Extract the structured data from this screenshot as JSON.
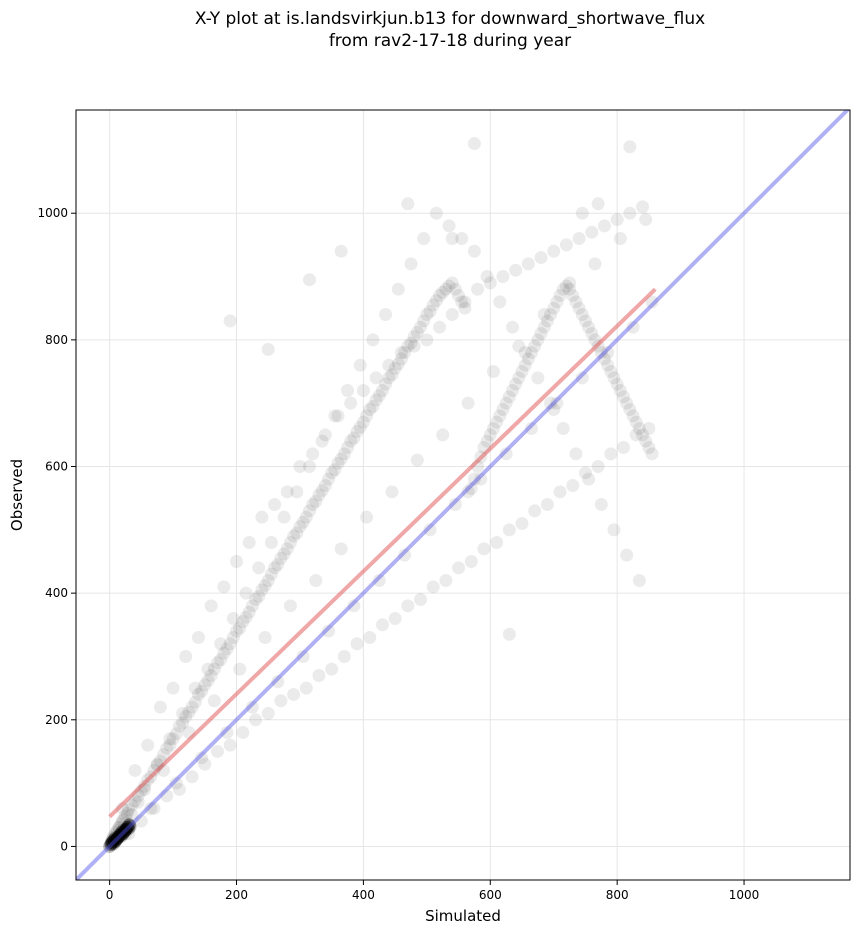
{
  "chart_data": {
    "type": "scatter",
    "title": "X-Y plot at is.landsvirkjun.b13 for downward_shortwave_flux",
    "subtitle": "from rav2-17-18 during year",
    "xlabel": "Simulated",
    "ylabel": "Observed",
    "xlim": [
      -53,
      1167
    ],
    "ylim": [
      -53,
      1163
    ],
    "xticks": [
      0,
      200,
      400,
      600,
      800,
      1000
    ],
    "yticks": [
      0,
      200,
      400,
      600,
      800,
      1000
    ],
    "grid": true,
    "legend": "none",
    "colors": {
      "points": "#000000",
      "fit_line": "#e05050",
      "one_to_one": "#4f4fe6"
    },
    "reference_line": {
      "x": [
        -53,
        1167
      ],
      "y": [
        -53,
        1167
      ]
    },
    "fit_line": {
      "x": [
        0,
        860
      ],
      "y": [
        47,
        880
      ]
    },
    "series": [
      {
        "point_alpha": 0.08,
        "x": [
          2,
          3,
          4,
          5,
          6,
          8,
          10,
          12,
          15,
          18,
          20,
          22,
          25,
          28,
          30,
          35,
          40,
          45,
          50,
          55,
          60,
          65,
          70,
          75,
          80,
          85,
          90,
          95,
          100,
          105,
          110,
          115,
          120,
          125,
          130,
          135,
          140,
          145,
          150,
          155,
          160,
          165,
          170,
          175,
          180,
          185,
          190,
          195,
          200,
          205,
          210,
          215,
          220,
          225,
          230,
          235,
          240,
          245,
          250,
          255,
          260,
          265,
          270,
          275,
          280,
          285,
          290,
          295,
          300,
          305,
          310,
          315,
          320,
          325,
          330,
          335,
          340,
          345,
          350,
          355,
          360,
          365,
          370,
          375,
          380,
          385,
          390,
          395,
          400,
          405,
          410,
          415,
          420,
          425,
          430,
          435,
          440,
          445,
          450,
          455,
          460,
          465,
          470,
          475,
          480,
          485,
          490,
          495,
          500,
          505,
          510,
          515,
          520,
          525,
          530,
          535,
          540,
          545,
          550,
          555,
          560,
          565,
          570,
          575,
          580,
          585,
          590,
          595,
          600,
          605,
          610,
          615,
          620,
          625,
          630,
          635,
          640,
          645,
          650,
          655,
          660,
          665,
          670,
          675,
          680,
          685,
          690,
          695,
          700,
          705,
          710,
          715,
          720,
          725,
          730,
          735,
          740,
          745,
          750,
          755,
          760,
          765,
          770,
          775,
          780,
          785,
          790,
          795,
          800,
          805,
          810,
          815,
          820,
          825,
          830,
          835,
          840,
          845,
          850,
          855,
          20,
          40,
          60,
          80,
          100,
          120,
          140,
          160,
          180,
          200,
          220,
          240,
          260,
          280,
          300,
          320,
          340,
          360,
          380,
          400,
          420,
          440,
          460,
          480,
          500,
          520,
          540,
          560,
          580,
          600,
          620,
          640,
          660,
          680,
          700,
          720,
          740,
          760,
          780,
          800,
          820,
          840,
          30,
          50,
          70,
          90,
          110,
          130,
          150,
          170,
          190,
          210,
          230,
          250,
          270,
          290,
          310,
          330,
          350,
          370,
          390,
          410,
          430,
          450,
          470,
          490,
          510,
          530,
          550,
          570,
          590,
          610,
          630,
          650,
          670,
          690,
          710,
          730,
          750,
          770,
          790,
          810,
          830,
          850,
          15,
          35,
          55,
          75,
          95,
          115,
          135,
          155,
          175,
          195,
          215,
          235,
          255,
          275,
          295,
          315,
          335,
          355,
          375,
          395,
          415,
          435,
          455,
          475,
          495,
          515,
          535,
          555,
          575,
          595,
          615,
          635,
          655,
          675,
          695,
          715,
          735,
          755,
          775,
          795,
          815,
          835,
          10,
          45,
          85,
          125,
          165,
          205,
          245,
          285,
          325,
          365,
          405,
          445,
          485,
          525,
          565,
          605,
          645,
          685,
          725,
          765,
          805,
          845,
          25,
          65,
          105,
          145,
          185,
          225,
          265,
          305,
          345,
          385,
          425,
          465,
          505,
          545,
          585,
          625,
          665,
          705,
          745,
          785,
          825,
          855,
          575,
          820,
          470,
          190,
          315,
          250,
          365,
          540,
          700,
          745,
          770,
          630
        ],
        "y": [
          5,
          8,
          10,
          12,
          15,
          18,
          22,
          25,
          30,
          35,
          40,
          42,
          48,
          52,
          58,
          65,
          72,
          80,
          88,
          95,
          105,
          110,
          120,
          128,
          135,
          145,
          155,
          160,
          170,
          178,
          190,
          195,
          205,
          212,
          220,
          228,
          240,
          245,
          255,
          262,
          270,
          280,
          290,
          295,
          305,
          312,
          320,
          330,
          340,
          345,
          355,
          362,
          370,
          380,
          390,
          395,
          405,
          412,
          420,
          430,
          440,
          445,
          455,
          462,
          470,
          480,
          490,
          495,
          505,
          512,
          520,
          530,
          540,
          545,
          555,
          562,
          570,
          580,
          590,
          595,
          605,
          612,
          620,
          630,
          640,
          645,
          655,
          662,
          670,
          680,
          690,
          695,
          705,
          712,
          720,
          730,
          740,
          745,
          755,
          762,
          770,
          780,
          790,
          795,
          805,
          812,
          820,
          830,
          840,
          845,
          855,
          862,
          870,
          875,
          880,
          885,
          890,
          880,
          870,
          860,
          850,
          560,
          565,
          580,
          600,
          615,
          630,
          640,
          650,
          660,
          670,
          680,
          690,
          700,
          710,
          720,
          730,
          740,
          750,
          760,
          770,
          780,
          790,
          800,
          810,
          820,
          830,
          840,
          850,
          860,
          870,
          880,
          885,
          890,
          870,
          860,
          850,
          840,
          830,
          820,
          810,
          800,
          790,
          780,
          770,
          760,
          750,
          740,
          730,
          720,
          710,
          700,
          690,
          680,
          670,
          660,
          650,
          640,
          630,
          620,
          60,
          120,
          160,
          220,
          250,
          300,
          330,
          380,
          410,
          450,
          480,
          520,
          540,
          560,
          600,
          620,
          650,
          680,
          700,
          720,
          740,
          760,
          780,
          790,
          800,
          820,
          840,
          860,
          880,
          890,
          900,
          910,
          920,
          930,
          940,
          950,
          960,
          970,
          980,
          990,
          1000,
          1010,
          20,
          40,
          60,
          80,
          90,
          110,
          130,
          150,
          160,
          180,
          200,
          210,
          230,
          240,
          250,
          270,
          280,
          300,
          320,
          330,
          350,
          360,
          380,
          390,
          410,
          420,
          440,
          450,
          470,
          480,
          500,
          510,
          530,
          540,
          560,
          570,
          590,
          600,
          620,
          630,
          650,
          660,
          30,
          50,
          90,
          130,
          170,
          210,
          250,
          280,
          320,
          360,
          400,
          440,
          480,
          520,
          560,
          600,
          640,
          680,
          720,
          760,
          800,
          840,
          880,
          920,
          960,
          1000,
          980,
          960,
          940,
          900,
          860,
          820,
          780,
          740,
          700,
          660,
          620,
          580,
          540,
          500,
          460,
          420,
          15,
          70,
          120,
          180,
          230,
          280,
          330,
          380,
          420,
          470,
          520,
          560,
          610,
          650,
          700,
          750,
          790,
          840,
          880,
          920,
          960,
          990,
          20,
          60,
          100,
          140,
          180,
          220,
          260,
          300,
          340,
          380,
          420,
          460,
          500,
          540,
          580,
          620,
          660,
          700,
          740,
          780,
          820,
          860,
          1110,
          1105,
          1015,
          830,
          895,
          785,
          940,
          960,
          690,
          1000,
          1015,
          335
        ]
      }
    ]
  }
}
